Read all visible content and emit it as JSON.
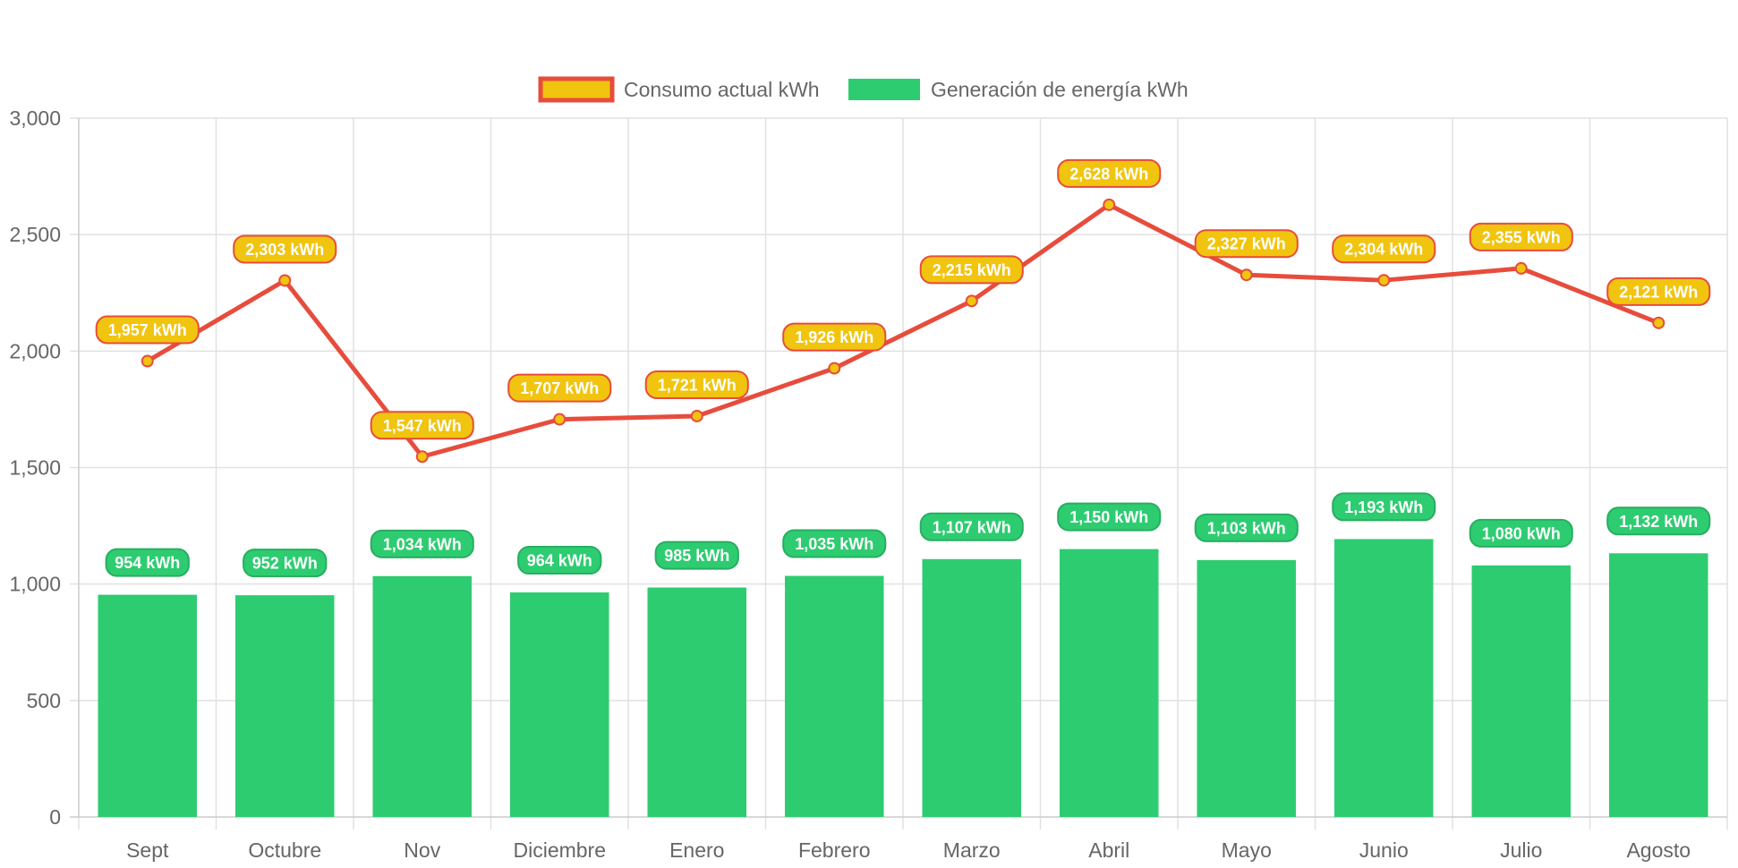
{
  "chart_data": {
    "type": "bar",
    "categories": [
      "Sept",
      "Octubre",
      "Nov",
      "Diciembre",
      "Enero",
      "Febrero",
      "Marzo",
      "Abril",
      "Mayo",
      "Junio",
      "Julio",
      "Agosto"
    ],
    "series": [
      {
        "name": "Consumo actual kWh",
        "type": "line",
        "color": "#e74c3c",
        "fill": "#f1c40f",
        "values": [
          1957,
          2303,
          1547,
          1707,
          1721,
          1926,
          2215,
          2628,
          2327,
          2304,
          2355,
          2121
        ],
        "labels": [
          "1,957 kWh",
          "2,303 kWh",
          "1,547 kWh",
          "1,707 kWh",
          "1,721 kWh",
          "1,926 kWh",
          "2,215 kWh",
          "2,628 kWh",
          "2,327 kWh",
          "2,304 kWh",
          "2,355 kWh",
          "2,121 kWh"
        ]
      },
      {
        "name": "Generación de energía kWh",
        "type": "bar",
        "color": "#2ecc71",
        "border": "#27ae60",
        "values": [
          954,
          952,
          1034,
          964,
          985,
          1035,
          1107,
          1150,
          1103,
          1193,
          1080,
          1132
        ],
        "labels": [
          "954 kWh",
          "952 kWh",
          "1,034 kWh",
          "964 kWh",
          "985 kWh",
          "1,035 kWh",
          "1,107 kWh",
          "1,150 kWh",
          "1,103 kWh",
          "1,193 kWh",
          "1,080 kWh",
          "1,132 kWh"
        ]
      }
    ],
    "yticks": [
      0,
      500,
      1000,
      1500,
      2000,
      2500,
      3000
    ],
    "ytick_labels": [
      "0",
      "500",
      "1,000",
      "1,500",
      "2,000",
      "2,500",
      "3,000"
    ],
    "ylim": [
      0,
      3000
    ],
    "grid": true,
    "legend_position": "top-center",
    "title": "",
    "xlabel": "",
    "ylabel": ""
  }
}
